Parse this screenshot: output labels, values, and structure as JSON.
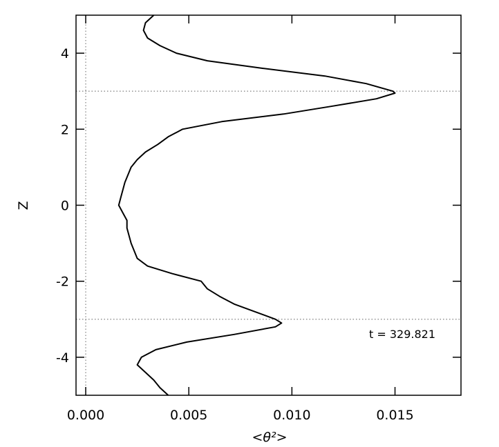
{
  "chart_data": {
    "type": "line",
    "xlabel": "<θ²>",
    "ylabel": "Z",
    "annotation": "t = 329.821",
    "y": [
      5.0,
      4.8,
      4.6,
      4.4,
      4.2,
      4.0,
      3.8,
      3.6,
      3.4,
      3.2,
      3.0,
      2.95,
      2.8,
      2.6,
      2.4,
      2.2,
      2.0,
      1.8,
      1.6,
      1.4,
      1.2,
      1.0,
      0.6,
      0.2,
      0.0,
      -0.2,
      -0.4,
      -0.6,
      -1.0,
      -1.4,
      -1.6,
      -1.8,
      -2.0,
      -2.2,
      -2.4,
      -2.6,
      -2.8,
      -3.0,
      -3.1,
      -3.2,
      -3.4,
      -3.6,
      -3.8,
      -4.0,
      -4.2,
      -4.4,
      -4.6,
      -4.8,
      -5.0
    ],
    "series": [
      {
        "color": "#000000",
        "values": [
          0.0033,
          0.0029,
          0.0028,
          0.003,
          0.0036,
          0.0044,
          0.0059,
          0.0086,
          0.0116,
          0.0136,
          0.0149,
          0.015,
          0.0141,
          0.0119,
          0.0096,
          0.0066,
          0.0047,
          0.004,
          0.0035,
          0.0029,
          0.0025,
          0.0022,
          0.0019,
          0.0017,
          0.0016,
          0.0018,
          0.002,
          0.002,
          0.0022,
          0.0025,
          0.003,
          0.0042,
          0.0056,
          0.0059,
          0.0065,
          0.0072,
          0.0082,
          0.0092,
          0.0095,
          0.0092,
          0.0072,
          0.0049,
          0.0034,
          0.0027,
          0.0025,
          0.0029,
          0.0033,
          0.0036,
          0.004
        ]
      }
    ],
    "xlim": [
      -0.00047,
      0.0182
    ],
    "ylim": [
      -5,
      5
    ],
    "xticks": [
      {
        "value": 0,
        "label": "0.000"
      },
      {
        "value": 0.005,
        "label": "0.005"
      },
      {
        "value": 0.01,
        "label": "0.010"
      },
      {
        "value": 0.015,
        "label": "0.015"
      }
    ],
    "yticks": [
      -4,
      -2,
      0,
      2,
      4
    ],
    "reference_lines": {
      "y": [
        3,
        -3
      ],
      "x": [
        0
      ]
    }
  }
}
